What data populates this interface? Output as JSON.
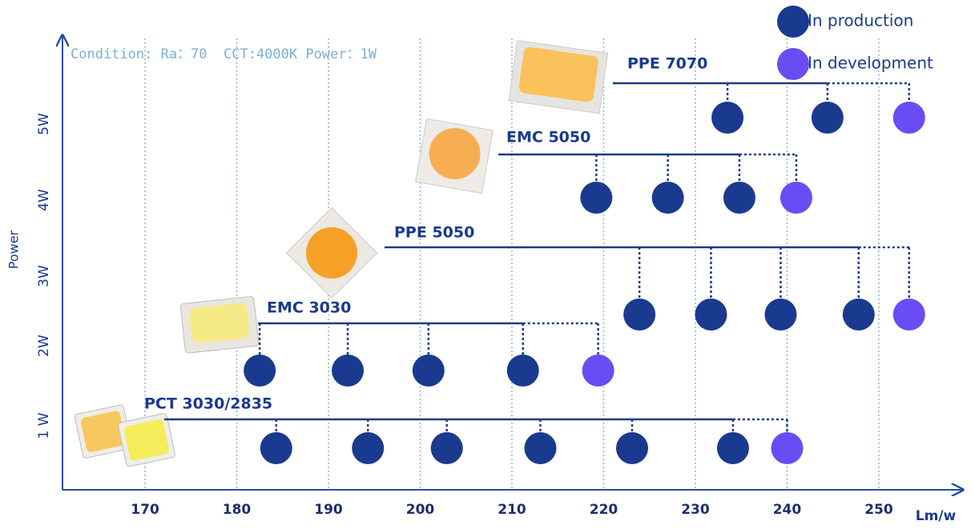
{
  "chart_data": {
    "type": "roadmap",
    "annotation": "Condition: Ra：70  CCT:4000K Power：1W",
    "xlabel": "Lm/w",
    "ylabel": "Power",
    "xlim": [
      161,
      259
    ],
    "xticks": [
      170,
      180,
      190,
      200,
      210,
      220,
      230,
      240,
      250
    ],
    "categories": [
      "1 W",
      "2W",
      "3W",
      "4W",
      "5W"
    ],
    "grid": true,
    "legend": [
      {
        "name": "In production",
        "color": "#1a3a8f"
      },
      {
        "name": "In development",
        "color": "#6a4cf5"
      }
    ],
    "products": [
      {
        "name": "PCT 3030/2835",
        "in_production": [
          184.3,
          194.3,
          202.9,
          213.1,
          223.1,
          234.1
        ],
        "in_development": [
          240
        ]
      },
      {
        "name": "EMC 3030",
        "in_production": [
          182.5,
          192.1,
          200.9,
          211.2
        ],
        "in_development": [
          219.4
        ]
      },
      {
        "name": "PPE 5050",
        "in_production": [
          223.9,
          231.7,
          239.3,
          247.8
        ],
        "in_development": [
          253.3
        ]
      },
      {
        "name": "EMC 5050",
        "in_production": [
          219.2,
          227.0,
          234.8
        ],
        "in_development": [
          241.0
        ]
      },
      {
        "name": "PPE 7070",
        "in_production": [
          233.5,
          244.4
        ],
        "in_development": [
          253.3
        ]
      }
    ]
  }
}
